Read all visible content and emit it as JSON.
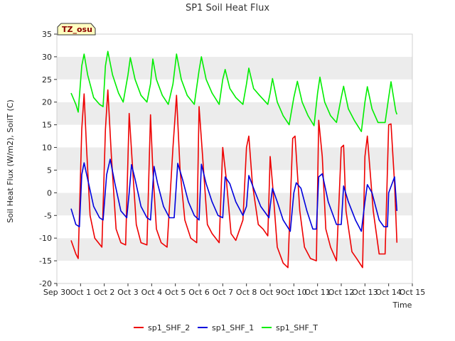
{
  "chart_data": {
    "type": "line",
    "title": "SP1 Soil Heat Flux",
    "xlabel": "Time",
    "ylabel": "Soil Heat Flux (W/m2), SoilT (C)",
    "ylim": [
      -20,
      35
    ],
    "xlim": [
      0,
      15
    ],
    "yticks": [
      -20,
      -15,
      -10,
      -5,
      0,
      5,
      10,
      15,
      20,
      25,
      30,
      35
    ],
    "xticks": [
      {
        "value": 0,
        "label": "Sep 30"
      },
      {
        "value": 1,
        "label": "Oct 1"
      },
      {
        "value": 2,
        "label": "Oct 2"
      },
      {
        "value": 3,
        "label": "Oct 3"
      },
      {
        "value": 4,
        "label": "Oct 4"
      },
      {
        "value": 5,
        "label": "Oct 5"
      },
      {
        "value": 6,
        "label": "Oct 6"
      },
      {
        "value": 7,
        "label": "Oct 7"
      },
      {
        "value": 8,
        "label": "Oct 8"
      },
      {
        "value": 9,
        "label": "Oct 9"
      },
      {
        "value": 10,
        "label": "Oct 10"
      },
      {
        "value": 11,
        "label": "Oct 11"
      },
      {
        "value": 12,
        "label": "Oct 12"
      },
      {
        "value": 13,
        "label": "Oct 13"
      },
      {
        "value": 14,
        "label": "Oct 14"
      },
      {
        "value": 15,
        "label": "Oct 15"
      }
    ],
    "grid": true,
    "legend_position": "bottom",
    "annotation": "TZ_osu",
    "series": [
      {
        "name": "sp1_SHF_2",
        "color": "#ee0000",
        "x": [
          0.6,
          0.8,
          0.9,
          1.05,
          1.15,
          1.25,
          1.4,
          1.6,
          1.9,
          2.05,
          2.15,
          2.3,
          2.5,
          2.7,
          2.9,
          3.05,
          3.2,
          3.35,
          3.55,
          3.8,
          3.95,
          4.05,
          4.2,
          4.4,
          4.65,
          4.9,
          5.05,
          5.2,
          5.4,
          5.65,
          5.9,
          6.0,
          6.15,
          6.35,
          6.55,
          6.85,
          7.0,
          7.15,
          7.35,
          7.55,
          7.85,
          8.0,
          8.1,
          8.25,
          8.5,
          8.7,
          8.9,
          9.0,
          9.1,
          9.3,
          9.55,
          9.75,
          9.95,
          10.05,
          10.25,
          10.45,
          10.7,
          10.95,
          11.05,
          11.2,
          11.35,
          11.55,
          11.8,
          12.0,
          12.1,
          12.2,
          12.45,
          12.65,
          12.9,
          13.0,
          13.1,
          13.35,
          13.6,
          13.85,
          14.0,
          14.1,
          14.25,
          14.35
        ],
        "y": [
          -10.5,
          -13.5,
          -14.5,
          14,
          21.8,
          10,
          -5,
          -10,
          -12,
          14,
          22.7,
          8,
          -8,
          -11,
          -11.5,
          17.5,
          5,
          -7,
          -11,
          -11.5,
          17.2,
          5,
          -8,
          -11,
          -12,
          10,
          21.5,
          5,
          -6,
          -10,
          -11,
          19,
          8,
          -7,
          -9,
          -11,
          10,
          3,
          -9,
          -10.5,
          -6,
          10,
          12.5,
          2,
          -7,
          -8,
          -9.5,
          8,
          2,
          -12,
          -15.5,
          -16.5,
          12,
          12.5,
          -4,
          -12,
          -14.5,
          -15,
          16,
          8,
          -8,
          -12,
          -15,
          10,
          10.5,
          -4,
          -13,
          -14.5,
          -16.5,
          8,
          12.5,
          -4,
          -13.5,
          -13.5,
          15,
          15.2,
          2,
          -11
        ]
      },
      {
        "name": "sp1_SHF_1",
        "color": "#0000dd",
        "x": [
          0.6,
          0.8,
          0.95,
          1.05,
          1.15,
          1.3,
          1.55,
          1.8,
          1.95,
          2.1,
          2.25,
          2.45,
          2.7,
          2.95,
          3.05,
          3.15,
          3.3,
          3.55,
          3.8,
          3.95,
          4.1,
          4.25,
          4.5,
          4.75,
          4.95,
          5.1,
          5.3,
          5.55,
          5.8,
          6.0,
          6.1,
          6.3,
          6.55,
          6.8,
          7.0,
          7.1,
          7.3,
          7.55,
          7.85,
          8.0,
          8.1,
          8.3,
          8.6,
          8.95,
          9.0,
          9.1,
          9.3,
          9.55,
          9.85,
          10.0,
          10.1,
          10.3,
          10.55,
          10.8,
          10.95,
          11.05,
          11.2,
          11.45,
          11.8,
          12.0,
          12.1,
          12.3,
          12.6,
          12.85,
          13.0,
          13.1,
          13.3,
          13.6,
          13.8,
          13.95,
          14.0,
          14.25,
          14.35
        ],
        "y": [
          -3.5,
          -7,
          -7.5,
          4,
          6.6,
          3,
          -3,
          -5.5,
          -6,
          4,
          7.4,
          2,
          -4,
          -5.5,
          0,
          6.2,
          3,
          -3,
          -5.5,
          -6,
          5.8,
          2,
          -3,
          -5.5,
          -5.5,
          6.5,
          3,
          -2,
          -5,
          -6,
          6.3,
          2,
          -2,
          -5,
          -5.5,
          3.5,
          2,
          -2,
          -5,
          -3,
          3.8,
          1,
          -3,
          -5.5,
          -3,
          1,
          -2,
          -6,
          -8.5,
          0,
          2.2,
          1,
          -4,
          -8,
          -8,
          3.5,
          4.2,
          -2,
          -7,
          -7,
          1.5,
          -2,
          -6,
          -8.5,
          -2,
          1.8,
          0,
          -6,
          -7.5,
          -7.5,
          0,
          3.5,
          -4
        ]
      },
      {
        "name": "sp1_SHF_T",
        "color": "#00ee00",
        "x": [
          0.6,
          0.8,
          0.9,
          1.05,
          1.15,
          1.3,
          1.55,
          1.8,
          1.95,
          2.05,
          2.15,
          2.35,
          2.6,
          2.8,
          3.0,
          3.1,
          3.3,
          3.55,
          3.8,
          3.95,
          4.05,
          4.2,
          4.45,
          4.7,
          4.9,
          5.05,
          5.25,
          5.5,
          5.8,
          6.0,
          6.1,
          6.3,
          6.55,
          6.85,
          7.0,
          7.1,
          7.3,
          7.55,
          7.85,
          8.0,
          8.1,
          8.3,
          8.55,
          8.9,
          9.0,
          9.1,
          9.3,
          9.55,
          9.8,
          10.0,
          10.15,
          10.35,
          10.6,
          10.85,
          11.0,
          11.1,
          11.3,
          11.55,
          11.8,
          12.0,
          12.1,
          12.3,
          12.55,
          12.85,
          13.0,
          13.1,
          13.3,
          13.55,
          13.85,
          14.0,
          14.1,
          14.3,
          14.35
        ],
        "y": [
          22,
          19.5,
          17.8,
          28,
          30.6,
          26,
          21,
          19.5,
          19,
          28,
          31.2,
          26,
          22,
          20,
          26,
          29.8,
          25,
          21.5,
          20,
          24,
          29.5,
          25,
          21.5,
          19.5,
          24,
          30.6,
          25,
          21.5,
          19.5,
          27,
          30,
          25,
          22,
          19.5,
          25,
          27.2,
          23,
          21,
          19.5,
          24,
          27.5,
          23,
          21.5,
          19.5,
          22,
          25.2,
          20,
          17,
          15,
          21,
          24.6,
          20,
          17,
          14.8,
          22,
          25.5,
          20,
          17,
          15.5,
          21,
          23.5,
          18.5,
          16,
          13.5,
          20,
          23.4,
          18.5,
          15.5,
          15.5,
          21,
          24.5,
          18,
          17.3
        ]
      }
    ]
  }
}
